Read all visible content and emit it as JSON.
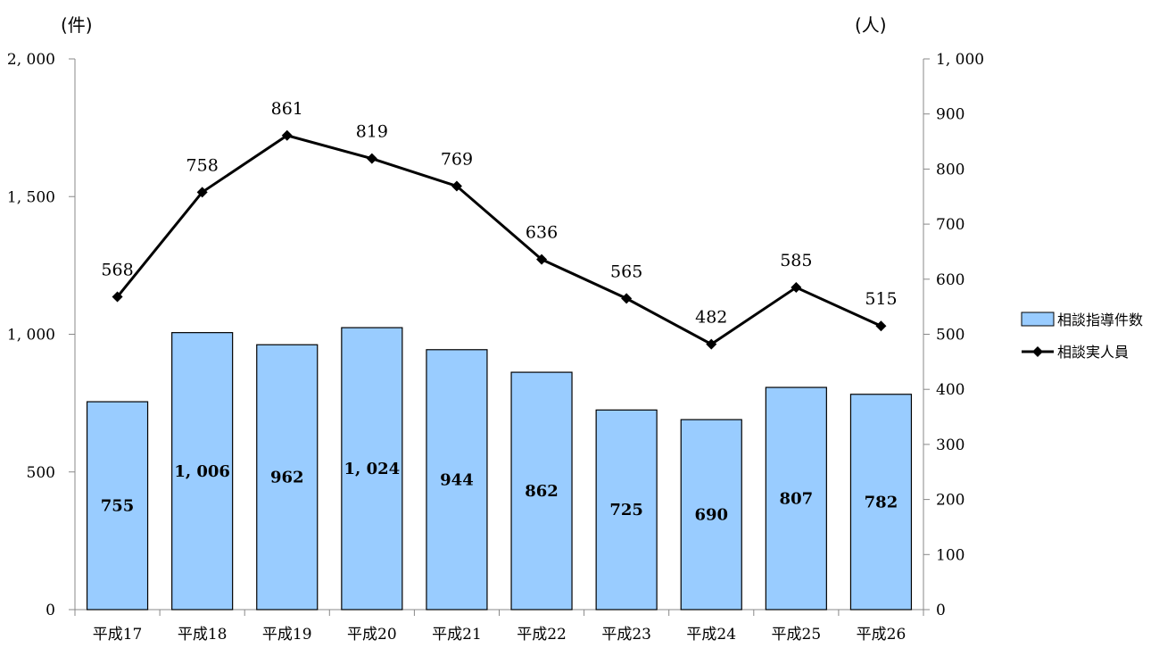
{
  "chart_data": {
    "type": "bar",
    "categories": [
      "平成17",
      "平成18",
      "平成19",
      "平成20",
      "平成21",
      "平成22",
      "平成23",
      "平成24",
      "平成25",
      "平成26"
    ],
    "series": [
      {
        "name": "相談指導件数",
        "type": "bar",
        "axis": "left",
        "color": "#99ccff",
        "values": [
          755,
          1006,
          962,
          1024,
          944,
          862,
          725,
          690,
          807,
          782
        ]
      },
      {
        "name": "相談実人員",
        "type": "line",
        "axis": "right",
        "color": "#000000",
        "values": [
          568,
          758,
          861,
          819,
          769,
          636,
          565,
          482,
          585,
          515
        ]
      }
    ],
    "left_axis": {
      "unit": "(件)",
      "ylim": [
        0,
        2000
      ],
      "ticks": [
        0,
        500,
        1000,
        1500,
        2000
      ],
      "tick_labels": [
        "0",
        "500",
        "1, 000",
        "1, 500",
        "2, 000"
      ]
    },
    "right_axis": {
      "unit": "(人)",
      "ylim": [
        0,
        1000
      ],
      "ticks": [
        0,
        100,
        200,
        300,
        400,
        500,
        600,
        700,
        800,
        900,
        1000
      ],
      "tick_labels": [
        "0",
        "100",
        "200",
        "300",
        "400",
        "500",
        "600",
        "700",
        "800",
        "900",
        "1, 000"
      ]
    },
    "bar_value_labels": [
      "755",
      "1, 006",
      "962",
      "1, 024",
      "944",
      "862",
      "725",
      "690",
      "807",
      "782"
    ],
    "legend": {
      "position": "right",
      "entries": [
        "相談指導件数",
        "相談実人員"
      ]
    },
    "grid": false
  }
}
